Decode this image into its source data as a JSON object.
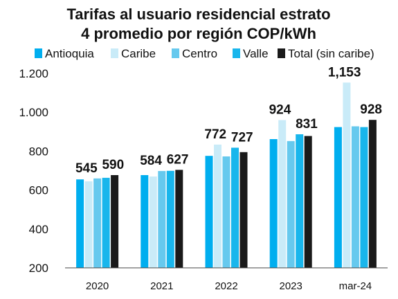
{
  "chart_data": {
    "type": "bar",
    "title_lines": [
      "Tarifas al usuario residencial estrato",
      "4 promedio por región COP/kWh"
    ],
    "categories": [
      "2020",
      "2021",
      "2022",
      "2023",
      "mar-24"
    ],
    "series": [
      {
        "name": "Antioquia",
        "color": "#00aeef",
        "values": [
          655,
          677,
          776,
          862,
          924
        ]
      },
      {
        "name": "Caribe",
        "color": "#c9ebf8",
        "values": [
          645,
          670,
          834,
          960,
          1153
        ]
      },
      {
        "name": "Centro",
        "color": "#66c9ee",
        "values": [
          660,
          698,
          773,
          852,
          928
        ]
      },
      {
        "name": "Valle",
        "color": "#19b6ec",
        "values": [
          663,
          699,
          818,
          887,
          924
        ]
      },
      {
        "name": "Total (sin caribe)",
        "color": "#1a1a1a",
        "values": [
          677,
          704,
          795,
          878,
          961
        ]
      }
    ],
    "data_labels": [
      {
        "category": "2020",
        "texts": [
          "545",
          "590"
        ]
      },
      {
        "category": "2021",
        "texts": [
          "584",
          "627"
        ]
      },
      {
        "category": "2022",
        "texts": [
          "772",
          "727"
        ]
      },
      {
        "category": "2023",
        "texts": [
          "924",
          "831"
        ]
      },
      {
        "category": "mar-24",
        "texts": [
          "1,153",
          "928"
        ]
      }
    ],
    "yticks": [
      "200",
      "400",
      "600",
      "800",
      "1.000",
      "1.200"
    ],
    "ylim": [
      200,
      1250
    ],
    "xlabel": "",
    "ylabel": "",
    "grid": false,
    "legend_position": "top"
  }
}
